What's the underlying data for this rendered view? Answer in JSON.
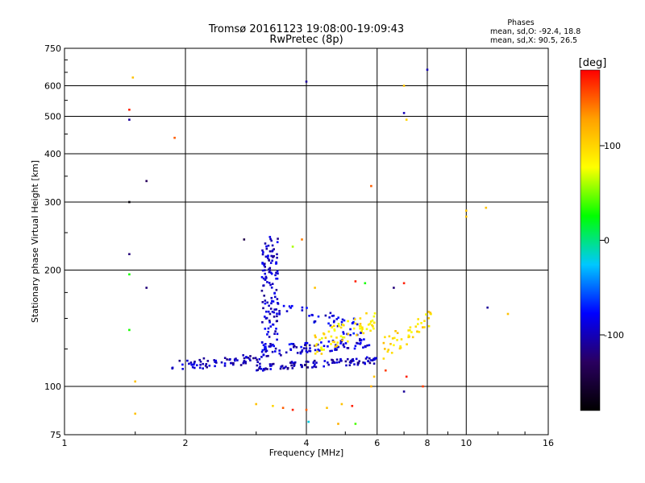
{
  "chart_data": {
    "type": "scatter",
    "title_lines": [
      "Tromsø 20161123 19:08:00-19:09:43",
      "RwPretec (8p)"
    ],
    "stats": {
      "heading": "Phases",
      "line_o": "mean, sd,O: -92.4, 18.8",
      "line_x": "mean, sd,X:  90.5, 26.5"
    },
    "xlabel": "Frequency [MHz]",
    "ylabel": "Stationary phase Virtual Height [km]",
    "x_scale": "log",
    "y_scale": "log",
    "xlim": [
      1,
      16
    ],
    "ylim": [
      75,
      750
    ],
    "x_ticks": [
      1,
      2,
      4,
      6,
      8,
      10,
      16
    ],
    "x_tick_labels": [
      "1",
      "2",
      "4",
      "6",
      "8",
      "10",
      "16"
    ],
    "y_ticks": [
      75,
      100,
      200,
      300,
      400,
      500,
      600,
      750
    ],
    "y_tick_labels": [
      "75",
      "100",
      "200",
      "300",
      "400",
      "500",
      "600",
      "750"
    ],
    "grid": true,
    "colorbar": {
      "label": "[deg]",
      "range": [
        -180,
        180
      ],
      "ticks": [
        100,
        0,
        -100
      ],
      "tick_labels": [
        "100",
        "0",
        "-100"
      ],
      "colors": [
        "#000000",
        "#2a0060",
        "#0000ff",
        "#00c8ff",
        "#00ff00",
        "#ffff00",
        "#ffa000",
        "#ff0000"
      ]
    },
    "traces": [
      {
        "name": "",
        "from_f": 1.85,
        "to_f": 3.1,
        "h_from": 113,
        "h_to": 118,
        "n": 70,
        "spread": 3.5,
        "phase": -100
      },
      {
        "name": "",
        "from_f": 3.0,
        "to_f": 6.0,
        "h_from": 112,
        "h_to": 117,
        "n": 110,
        "spread": 2.5,
        "phase": -100
      },
      {
        "name": "",
        "from_f": 3.1,
        "to_f": 3.4,
        "h_from": 120,
        "h_to": 240,
        "n": 130,
        "spread": 6,
        "phase": -95
      },
      {
        "name": "",
        "from_f": 3.1,
        "to_f": 5.8,
        "h_from": 123,
        "h_to": 130,
        "n": 90,
        "spread": 4,
        "phase": -90
      },
      {
        "name": "",
        "from_f": 3.4,
        "to_f": 5.5,
        "h_from": 160,
        "h_to": 140,
        "n": 50,
        "spread": 8,
        "phase": -85
      },
      {
        "name": "",
        "from_f": 4.2,
        "to_f": 6.0,
        "h_from": 128,
        "h_to": 150,
        "n": 70,
        "spread": 9,
        "phase": 90
      },
      {
        "name": "",
        "from_f": 6.2,
        "to_f": 8.2,
        "h_from": 125,
        "h_to": 150,
        "n": 45,
        "spread": 9,
        "phase": 95
      }
    ],
    "points": [
      {
        "x": 1.45,
        "y": 520,
        "phase": 170
      },
      {
        "x": 1.45,
        "y": 490,
        "phase": -110
      },
      {
        "x": 1.48,
        "y": 630,
        "phase": 110
      },
      {
        "x": 1.45,
        "y": 300,
        "phase": -175
      },
      {
        "x": 1.45,
        "y": 220,
        "phase": -120
      },
      {
        "x": 1.45,
        "y": 195,
        "phase": 30
      },
      {
        "x": 1.45,
        "y": 140,
        "phase": 30
      },
      {
        "x": 1.6,
        "y": 340,
        "phase": -130
      },
      {
        "x": 1.6,
        "y": 180,
        "phase": -120
      },
      {
        "x": 1.5,
        "y": 103,
        "phase": 110
      },
      {
        "x": 1.5,
        "y": 85,
        "phase": 110
      },
      {
        "x": 1.88,
        "y": 440,
        "phase": 150
      },
      {
        "x": 2.8,
        "y": 240,
        "phase": -140
      },
      {
        "x": 4.0,
        "y": 615,
        "phase": -110
      },
      {
        "x": 5.8,
        "y": 330,
        "phase": 150
      },
      {
        "x": 7.0,
        "y": 600,
        "phase": 110
      },
      {
        "x": 7.0,
        "y": 510,
        "phase": -100
      },
      {
        "x": 7.1,
        "y": 490,
        "phase": 100
      },
      {
        "x": 8.0,
        "y": 660,
        "phase": -100
      },
      {
        "x": 10.0,
        "y": 285,
        "phase": 110
      },
      {
        "x": 10.0,
        "y": 275,
        "phase": 110
      },
      {
        "x": 11.2,
        "y": 290,
        "phase": 110
      },
      {
        "x": 11.3,
        "y": 160,
        "phase": -110
      },
      {
        "x": 12.7,
        "y": 154,
        "phase": 110
      },
      {
        "x": 3.0,
        "y": 90,
        "phase": 110
      },
      {
        "x": 3.3,
        "y": 89,
        "phase": 100
      },
      {
        "x": 3.5,
        "y": 88,
        "phase": 150
      },
      {
        "x": 3.7,
        "y": 87,
        "phase": 170
      },
      {
        "x": 4.0,
        "y": 87,
        "phase": 150
      },
      {
        "x": 4.05,
        "y": 81,
        "phase": -20
      },
      {
        "x": 4.5,
        "y": 88,
        "phase": 110
      },
      {
        "x": 4.9,
        "y": 90,
        "phase": 110
      },
      {
        "x": 5.2,
        "y": 89,
        "phase": 170
      },
      {
        "x": 4.8,
        "y": 80,
        "phase": 120
      },
      {
        "x": 5.3,
        "y": 80,
        "phase": 40
      },
      {
        "x": 5.9,
        "y": 106,
        "phase": 110
      },
      {
        "x": 5.8,
        "y": 100,
        "phase": 120
      },
      {
        "x": 6.3,
        "y": 110,
        "phase": 160
      },
      {
        "x": 7.0,
        "y": 97,
        "phase": -110
      },
      {
        "x": 7.1,
        "y": 106,
        "phase": 170
      },
      {
        "x": 7.8,
        "y": 100,
        "phase": 160
      },
      {
        "x": 6.6,
        "y": 180,
        "phase": -120
      },
      {
        "x": 7.0,
        "y": 185,
        "phase": 170
      },
      {
        "x": 5.3,
        "y": 187,
        "phase": 170
      },
      {
        "x": 5.6,
        "y": 185,
        "phase": 30
      },
      {
        "x": 4.2,
        "y": 180,
        "phase": 110
      },
      {
        "x": 3.9,
        "y": 240,
        "phase": 140
      },
      {
        "x": 3.7,
        "y": 230,
        "phase": 60
      }
    ]
  }
}
